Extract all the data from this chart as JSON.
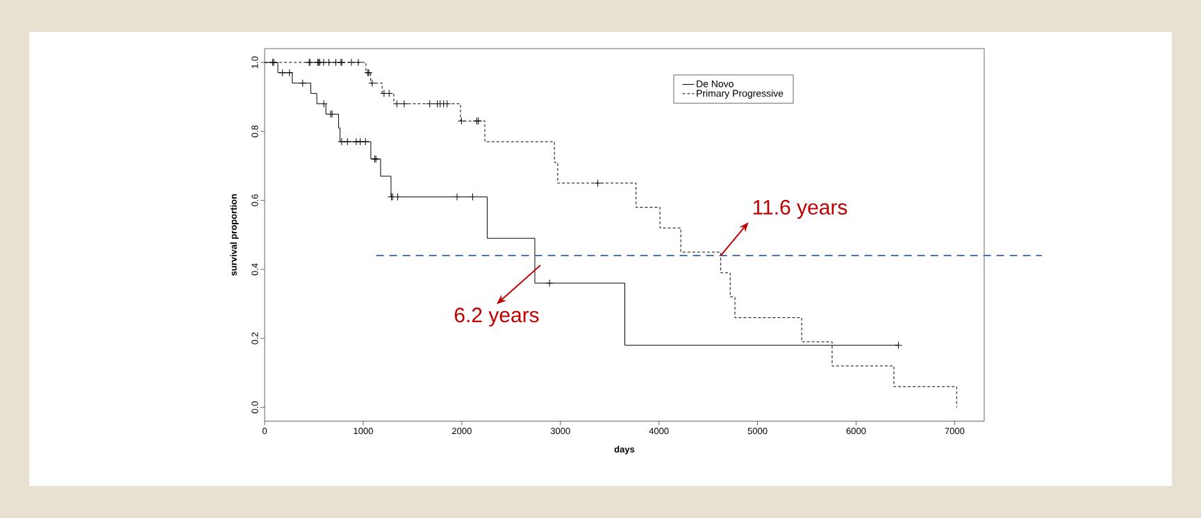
{
  "chart_data": {
    "type": "step",
    "xlabel": "days",
    "ylabel": "survival proportion",
    "xlim": [
      0,
      7300
    ],
    "ylim": [
      -0.04,
      1.04
    ],
    "xticks": [
      0,
      1000,
      2000,
      3000,
      4000,
      5000,
      6000,
      7000
    ],
    "yticks": [
      {
        "value": 0,
        "label": "0.0"
      },
      {
        "value": 0.2,
        "label": "0.2"
      },
      {
        "value": 0.4,
        "label": "0.4"
      },
      {
        "value": 0.6,
        "label": "0.6"
      },
      {
        "value": 0.8,
        "label": "0.8"
      },
      {
        "value": 1,
        "label": "1.0"
      }
    ],
    "legend": "top right",
    "grid": false,
    "series": [
      {
        "name": "De Novo",
        "color": "#000000",
        "line_style": "solid",
        "marker": "none",
        "x": [
          0,
          134,
          280,
          468,
          529,
          621,
          750,
          764,
          1077,
          1176,
          1282,
          2258,
          2741,
          3654,
          6430
        ],
        "values": [
          1,
          0.97,
          0.94,
          0.91,
          0.88,
          0.85,
          0.81,
          0.77,
          0.72,
          0.67,
          0.61,
          0.49,
          0.36,
          0.18,
          0.18
        ]
      },
      {
        "name": "Primary Progressive",
        "color": "#000000",
        "line_style": "dashed",
        "marker": "none",
        "x": [
          0,
          1028,
          1075,
          1192,
          1310,
          1987,
          2234,
          2940,
          2973,
          3768,
          4010,
          4222,
          4627,
          4723,
          4771,
          5448,
          5757,
          6384,
          7020
        ],
        "values": [
          1,
          0.97,
          0.94,
          0.91,
          0.88,
          0.83,
          0.77,
          0.71,
          0.65,
          0.58,
          0.52,
          0.45,
          0.39,
          0.32,
          0.26,
          0.19,
          0.12,
          0.06,
          0
        ]
      },
      {
        "type": "scatter",
        "color": "#000000",
        "marker": "cross",
        "x": [
          82,
          92,
          181,
          252,
          386,
          600,
          670,
          684,
          781,
          840,
          929,
          969,
          1023,
          1117,
          1129,
          1286,
          1298,
          1350,
          1952,
          2110,
          2890,
          6430
        ],
        "values": [
          1,
          1,
          0.97,
          0.97,
          0.94,
          0.88,
          0.85,
          0.85,
          0.77,
          0.77,
          0.77,
          0.77,
          0.77,
          0.72,
          0.72,
          0.61,
          0.61,
          0.61,
          0.61,
          0.61,
          0.36,
          0.18
        ]
      },
      {
        "type": "scatter",
        "color": "#000000",
        "marker": "cross",
        "x": [
          452,
          459,
          539,
          549,
          558,
          598,
          652,
          722,
          774,
          783,
          880,
          950,
          1047,
          1057,
          1091,
          1211,
          1263,
          1341,
          1416,
          1675,
          1752,
          1780,
          1816,
          1851,
          1997,
          2152,
          2168,
          3380
        ],
        "values": [
          1,
          1,
          1,
          1,
          1,
          1,
          1,
          1,
          1,
          1,
          1,
          1,
          0.97,
          0.97,
          0.94,
          0.91,
          0.91,
          0.88,
          0.88,
          0.88,
          0.88,
          0.88,
          0.88,
          0.88,
          0.83,
          0.83,
          0.83,
          0.65
        ]
      }
    ],
    "ref_lines": [
      {
        "axis": "y",
        "value": 0.44,
        "color": "#4472c4",
        "line_style": "dashed"
      }
    ],
    "annotations": [
      {
        "text": "6.2 years",
        "x": 2741,
        "y": 0.44
      },
      {
        "text": "11.6 years",
        "x": 4627,
        "y": 0.44
      }
    ]
  }
}
